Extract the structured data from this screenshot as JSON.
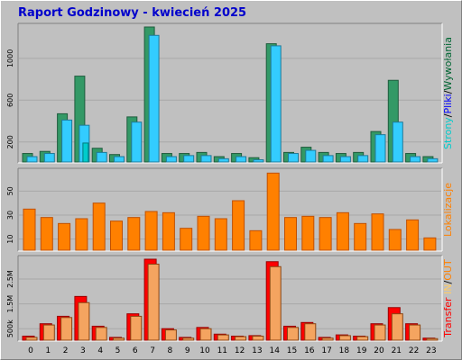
{
  "title": "Raport Godzinowy -  kwiecień 2025",
  "chart_data": [
    {
      "type": "bar",
      "name": "hits",
      "categories": [
        "0",
        "1",
        "2",
        "3",
        "4",
        "5",
        "6",
        "7",
        "8",
        "9",
        "10",
        "11",
        "12",
        "13",
        "14",
        "15",
        "16",
        "17",
        "18",
        "19",
        "20",
        "21",
        "22",
        "23"
      ],
      "ylabel_parts": [
        "Strony",
        "/",
        "Pliki",
        "/",
        "Wywołania"
      ],
      "ylabel_colors": [
        "#00cccc",
        "#000000",
        "#0000ff",
        "#000000",
        "#006633"
      ],
      "tick_labels": [
        "200",
        "600",
        "1000"
      ],
      "ylim": [
        0,
        1300
      ],
      "grid": true,
      "series": [
        {
          "name": "Wywołania",
          "color": "#339966",
          "values": [
            90,
            110,
            470,
            830,
            140,
            80,
            440,
            1300,
            90,
            90,
            100,
            60,
            90,
            50,
            1140,
            100,
            150,
            100,
            90,
            100,
            300,
            790,
            90,
            60
          ]
        },
        {
          "name": "Pliki",
          "color": "#33ccff",
          "values": [
            60,
            90,
            410,
            360,
            100,
            60,
            390,
            1220,
            60,
            70,
            70,
            40,
            60,
            30,
            1120,
            90,
            120,
            70,
            60,
            70,
            270,
            390,
            60,
            40
          ]
        },
        {
          "name": "Strony",
          "color": "#00cccc",
          "values": [
            0,
            0,
            0,
            190,
            0,
            0,
            0,
            0,
            0,
            0,
            0,
            0,
            0,
            0,
            0,
            0,
            0,
            0,
            0,
            0,
            0,
            0,
            0,
            0
          ]
        }
      ]
    },
    {
      "type": "bar",
      "name": "visits",
      "categories": [
        "0",
        "1",
        "2",
        "3",
        "4",
        "5",
        "6",
        "7",
        "8",
        "9",
        "10",
        "11",
        "12",
        "13",
        "14",
        "15",
        "16",
        "17",
        "18",
        "19",
        "20",
        "21",
        "22",
        "23"
      ],
      "ylabel": "Lokalizacje",
      "ylabel_color": "#ff8000",
      "tick_labels": [
        "10",
        "30",
        "50"
      ],
      "ylim": [
        0,
        66
      ],
      "grid": true,
      "series": [
        {
          "name": "Lokalizacje",
          "color": "#ff8000",
          "values": [
            35,
            28,
            23,
            27,
            40,
            25,
            28,
            33,
            32,
            19,
            29,
            27,
            42,
            17,
            65,
            28,
            29,
            28,
            32,
            23,
            31,
            18,
            26,
            11
          ]
        }
      ]
    },
    {
      "type": "bar",
      "name": "transfer",
      "categories": [
        "0",
        "1",
        "2",
        "3",
        "4",
        "5",
        "6",
        "7",
        "8",
        "9",
        "10",
        "11",
        "12",
        "13",
        "14",
        "15",
        "16",
        "17",
        "18",
        "19",
        "20",
        "21",
        "22",
        "23"
      ],
      "ylabel_parts": [
        "Transfer",
        " IN",
        "/",
        "OUT"
      ],
      "ylabel_colors": [
        "#ff0000",
        "#ffcc66",
        "#000000",
        "#ff8000"
      ],
      "tick_labels": [
        "500k",
        "1.5M",
        "2.5M"
      ],
      "ylim": [
        0,
        3300000
      ],
      "grid": true,
      "series": [
        {
          "name": "IN",
          "color": "#ff0000",
          "values": [
            200000,
            700000,
            1000000,
            1800000,
            600000,
            150000,
            1100000,
            3300000,
            500000,
            150000,
            550000,
            280000,
            200000,
            220000,
            3200000,
            600000,
            750000,
            150000,
            250000,
            200000,
            700000,
            1350000,
            700000,
            120000
          ]
        },
        {
          "name": "OUT",
          "color": "#f4a460",
          "values": [
            150000,
            650000,
            950000,
            1550000,
            550000,
            120000,
            1000000,
            3100000,
            450000,
            120000,
            500000,
            250000,
            180000,
            200000,
            3000000,
            550000,
            700000,
            120000,
            220000,
            180000,
            650000,
            1100000,
            650000,
            100000
          ]
        }
      ]
    }
  ]
}
